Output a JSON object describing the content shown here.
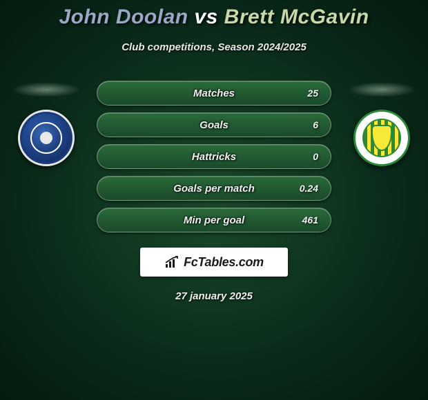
{
  "title": {
    "player1_color": "#9aa8c8",
    "player1": "John Doolan",
    "vs": "vs",
    "player2_color": "#c8d8a8",
    "player2": "Brett McGavin"
  },
  "subtitle": "Club competitions, Season 2024/2025",
  "stats": [
    {
      "label": "Matches",
      "value": "25"
    },
    {
      "label": "Goals",
      "value": "6"
    },
    {
      "label": "Hattricks",
      "value": "0"
    },
    {
      "label": "Goals per match",
      "value": "0.24"
    },
    {
      "label": "Min per goal",
      "value": "461"
    }
  ],
  "colors": {
    "bar_bg_top": "#2a6a3a",
    "bar_bg_bottom": "#1a4a2a",
    "bar_border": "rgba(255,255,255,0.35)",
    "page_bg_center": "#1a4a2a",
    "page_bg_outer": "#051a0f"
  },
  "footer": {
    "brand": "FcTables.com",
    "date": "27 january 2025"
  },
  "badges": {
    "left": {
      "name": "rochdale-afc-badge"
    },
    "right": {
      "name": "yeovil-town-badge"
    }
  }
}
